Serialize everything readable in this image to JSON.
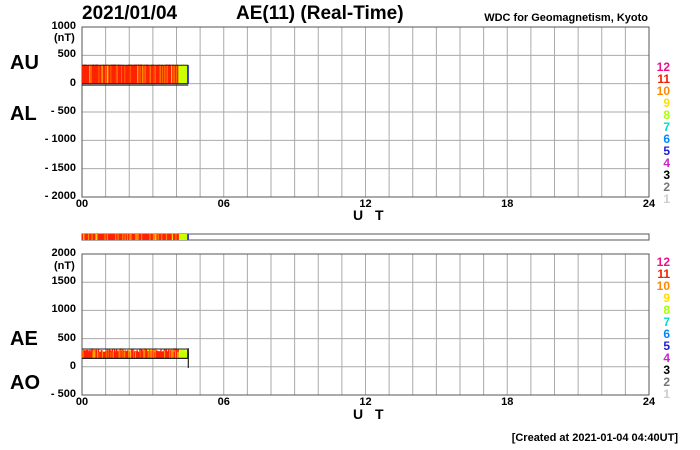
{
  "header": {
    "date": "2021/01/04",
    "title": "AE(11) (Real-Time)",
    "source": "WDC for Geomagnetism, Kyoto",
    "created": "[Created at 2021-01-04 04:40UT]"
  },
  "colors": {
    "frame": "#555555",
    "grid": "#aaaaaa",
    "bar_red": "#ff2200",
    "bar_orange": "#ff8800",
    "bar_yellow": "#ffdd00",
    "bar_yellowgreen": "#ccff00",
    "bar_blue": "#3333cc"
  },
  "legend": {
    "entries": [
      {
        "label": "12",
        "color": "#ee1188"
      },
      {
        "label": "11",
        "color": "#ee2200"
      },
      {
        "label": "10",
        "color": "#ff8800"
      },
      {
        "label": "9",
        "color": "#ffdd00"
      },
      {
        "label": "8",
        "color": "#aaff00"
      },
      {
        "label": "7",
        "color": "#00ddcc"
      },
      {
        "label": "6",
        "color": "#0088ff"
      },
      {
        "label": "5",
        "color": "#2222cc"
      },
      {
        "label": "4",
        "color": "#cc22cc"
      },
      {
        "label": "3",
        "color": "#000000"
      },
      {
        "label": "2",
        "color": "#777777"
      },
      {
        "label": "1",
        "color": "#cccccc"
      }
    ]
  },
  "chart_data": [
    {
      "type": "area",
      "series_labels": [
        "AU",
        "AL"
      ],
      "xlabel": "U T",
      "unit": "(nT)",
      "xlim": [
        0,
        24
      ],
      "ylim": [
        -2000,
        1000
      ],
      "x_ticks": [
        "00",
        "06",
        "12",
        "18",
        "24"
      ],
      "x_tick_values": [
        0,
        6,
        12,
        18,
        24
      ],
      "y_ticks": [
        "1000",
        "500",
        "0",
        "- 500",
        "- 1000",
        "- 1500",
        "- 2000"
      ],
      "y_tick_values": [
        1000,
        500,
        0,
        -500,
        -1000,
        -1500,
        -2000
      ],
      "data_end_hour": 4.5,
      "upper_band": [
        300,
        340
      ],
      "lower_band": [
        0,
        -25
      ]
    },
    {
      "type": "area",
      "series_labels": [
        "AE",
        "AO"
      ],
      "xlabel": "U T",
      "unit": "(nT)",
      "xlim": [
        0,
        24
      ],
      "ylim": [
        -500,
        2000
      ],
      "x_ticks": [
        "00",
        "06",
        "12",
        "18",
        "24"
      ],
      "x_tick_values": [
        0,
        6,
        12,
        18,
        24
      ],
      "y_ticks": [
        "2000",
        "1500",
        "1000",
        "500",
        "0",
        "- 500"
      ],
      "y_tick_values": [
        2000,
        1500,
        1000,
        500,
        0,
        -500
      ],
      "data_end_hour": 4.5,
      "ae_band": [
        150,
        330
      ],
      "ao_value": 150
    }
  ]
}
